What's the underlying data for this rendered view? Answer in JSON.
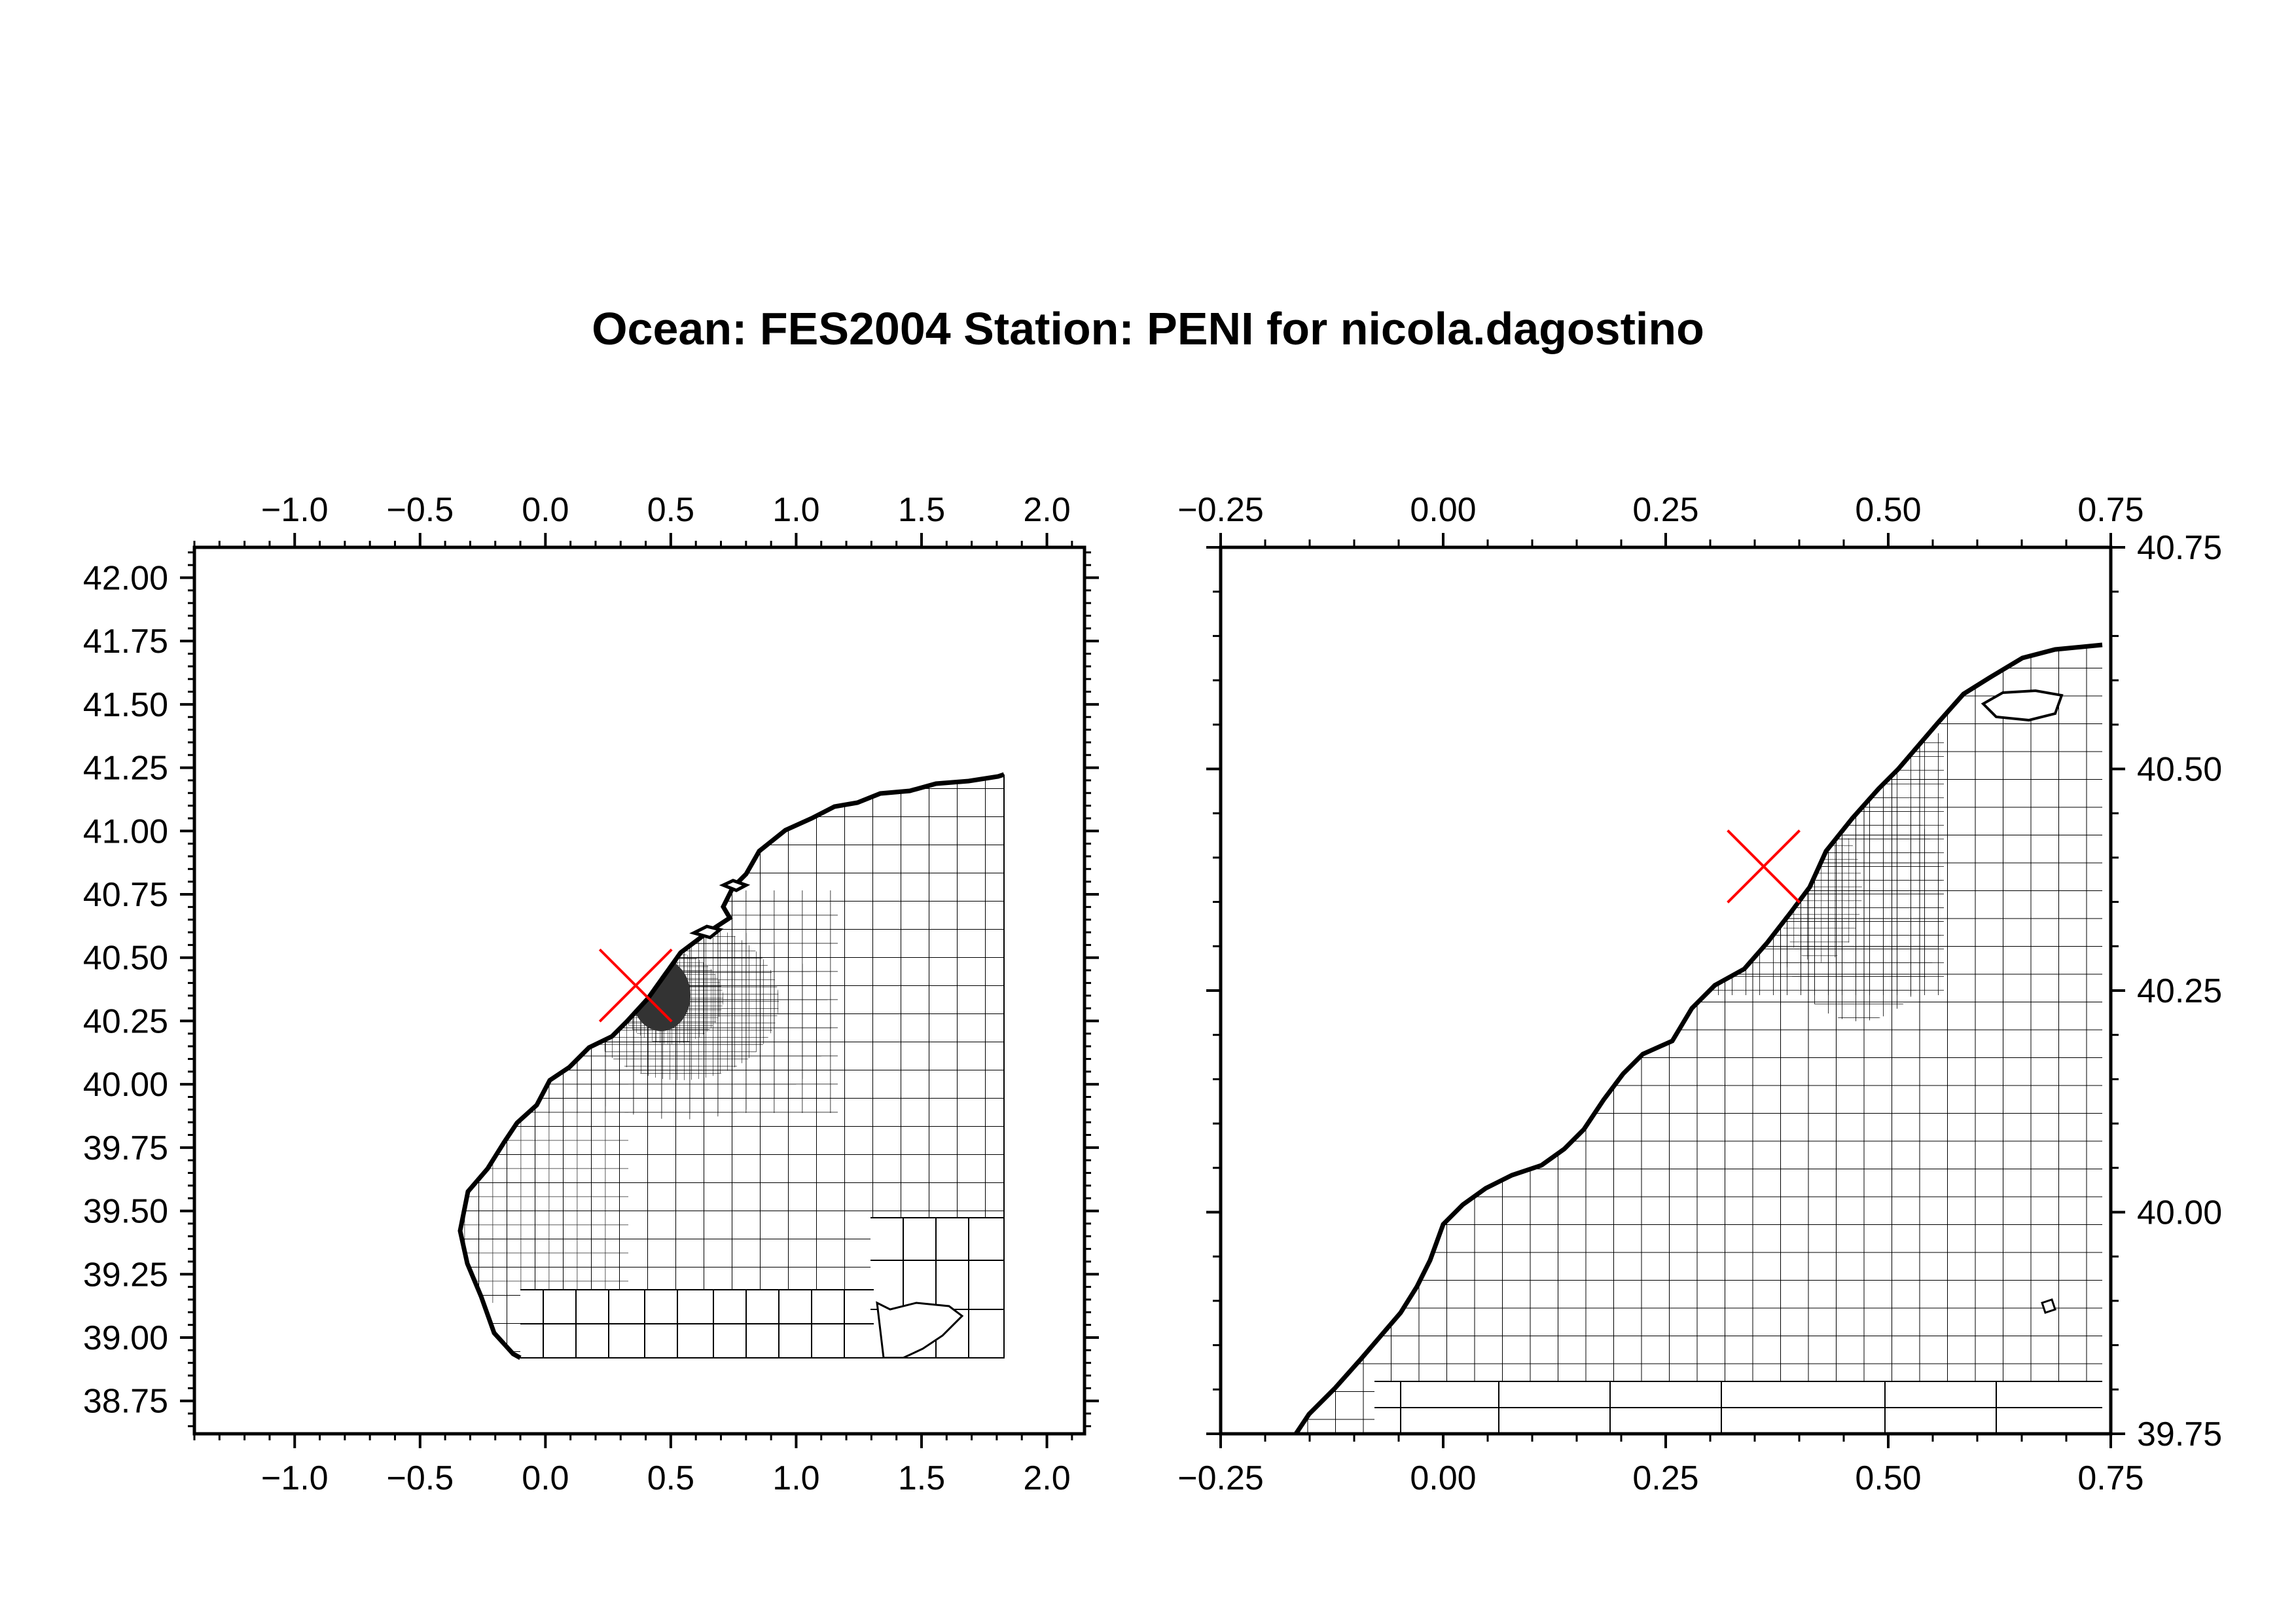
{
  "title": "Ocean: FES2004  Station: PENI  for nicola.dagostino",
  "colors": {
    "station_marker": "#ff0000",
    "mesh": "#000000",
    "dense_fill": "#3a3a3a"
  },
  "panels": [
    {
      "id": "overview",
      "x_range": [
        -1.4,
        2.15
      ],
      "y_range": [
        38.62,
        42.12
      ],
      "x_ticks": [
        "−1.0",
        "−0.5",
        "0.0",
        "0.5",
        "1.0",
        "1.5",
        "2.0"
      ],
      "x_tick_values": [
        -1.0,
        -0.5,
        0.0,
        0.5,
        1.0,
        1.5,
        2.0
      ],
      "y_ticks": [
        "38.75",
        "39.00",
        "39.25",
        "39.50",
        "39.75",
        "40.00",
        "40.25",
        "40.50",
        "40.75",
        "41.00",
        "41.25",
        "41.50",
        "41.75",
        "42.00"
      ],
      "y_tick_values": [
        38.75,
        39.0,
        39.25,
        39.5,
        39.75,
        40.0,
        40.25,
        40.5,
        40.75,
        41.0,
        41.25,
        41.5,
        41.75,
        42.0
      ],
      "station": {
        "lon": 0.36,
        "lat": 40.39
      }
    },
    {
      "id": "zoom",
      "x_range": [
        -0.25,
        0.75
      ],
      "y_range": [
        39.75,
        40.75
      ],
      "x_ticks": [
        "−0.25",
        "0.00",
        "0.25",
        "0.50",
        "0.75"
      ],
      "x_tick_values": [
        -0.25,
        0.0,
        0.25,
        0.5,
        0.75
      ],
      "y_ticks": [
        "39.75",
        "40.00",
        "40.25",
        "40.50",
        "40.75"
      ],
      "y_tick_values": [
        39.75,
        40.0,
        40.25,
        40.5,
        40.75
      ],
      "station": {
        "lon": 0.36,
        "lat": 40.39
      }
    }
  ]
}
